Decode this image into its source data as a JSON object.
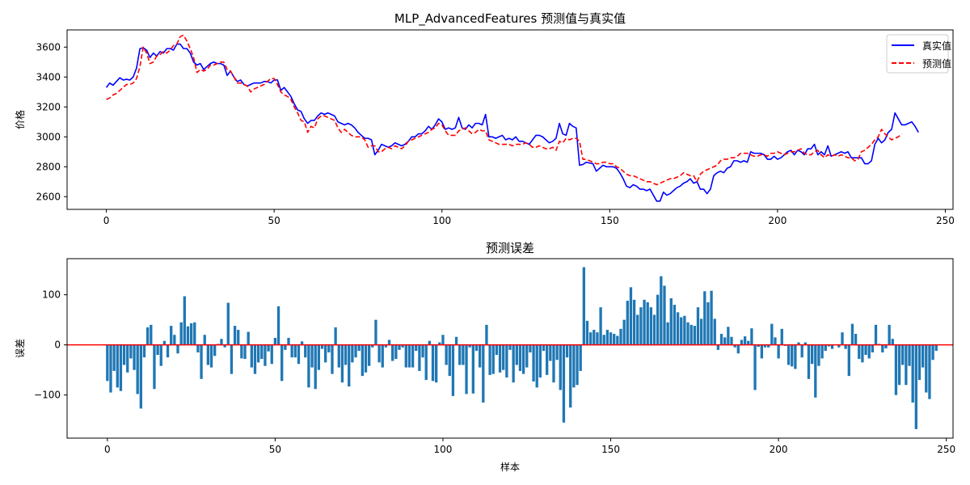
{
  "chart_data": [
    {
      "type": "line",
      "title": "MLP_AdvancedFeatures 预测值与真实值",
      "xlabel": "",
      "ylabel": "价格",
      "xlim": [
        -11.7,
        252.3
      ],
      "ylim": [
        2515,
        3715
      ],
      "xticks": [
        0,
        50,
        100,
        150,
        200,
        250
      ],
      "yticks": [
        2600,
        2800,
        3000,
        3200,
        3400,
        3600
      ],
      "grid": false,
      "legend_position": "upper right",
      "series": [
        {
          "name": "真实值",
          "color": "#0000ff",
          "style": "solid",
          "values": [
            3330,
            3360,
            3345,
            3370,
            3395,
            3380,
            3385,
            3380,
            3400,
            3460,
            3590,
            3595,
            3580,
            3530,
            3560,
            3540,
            3570,
            3560,
            3590,
            3590,
            3580,
            3620,
            3620,
            3590,
            3590,
            3560,
            3500,
            3480,
            3490,
            3450,
            3470,
            3490,
            3500,
            3490,
            3490,
            3480,
            3410,
            3440,
            3400,
            3370,
            3380,
            3350,
            3340,
            3350,
            3360,
            3360,
            3360,
            3370,
            3370,
            3360,
            3380,
            3380,
            3310,
            3330,
            3300,
            3270,
            3220,
            3180,
            3170,
            3120,
            3090,
            3110,
            3110,
            3140,
            3160,
            3150,
            3160,
            3150,
            3140,
            3100,
            3090,
            3080,
            3090,
            3080,
            3060,
            3030,
            3010,
            2990,
            2990,
            2980,
            2880,
            2910,
            2950,
            2940,
            2930,
            2940,
            2960,
            2950,
            2940,
            2950,
            2970,
            3000,
            3000,
            3020,
            3020,
            3040,
            3070,
            3050,
            3080,
            3120,
            3100,
            3050,
            3060,
            3050,
            3060,
            3130,
            3060,
            3050,
            3080,
            3060,
            3090,
            3090,
            3080,
            3150,
            3000,
            3000,
            2990,
            3000,
            3010,
            2980,
            2990,
            2980,
            3000,
            2970,
            2970,
            2960,
            2950,
            2980,
            3010,
            3010,
            3000,
            2980,
            2960,
            2970,
            2990,
            3090,
            3020,
            3010,
            3090,
            3070,
            3060,
            2810,
            2815,
            2830,
            2825,
            2820,
            2770,
            2790,
            2810,
            2800,
            2800,
            2800,
            2790,
            2760,
            2720,
            2670,
            2660,
            2680,
            2670,
            2650,
            2650,
            2640,
            2650,
            2610,
            2570,
            2570,
            2630,
            2610,
            2620,
            2640,
            2660,
            2670,
            2690,
            2700,
            2720,
            2690,
            2700,
            2650,
            2650,
            2620,
            2650,
            2740,
            2760,
            2770,
            2760,
            2790,
            2800,
            2840,
            2840,
            2830,
            2840,
            2830,
            2900,
            2890,
            2890,
            2890,
            2880,
            2850,
            2850,
            2870,
            2850,
            2860,
            2880,
            2900,
            2910,
            2880,
            2910,
            2900,
            2880,
            2920,
            2920,
            2950,
            2880,
            2900,
            2880,
            2940,
            2870,
            2880,
            2890,
            2900,
            2890,
            2900,
            2860,
            2860,
            2860,
            2860,
            2820,
            2820,
            2840,
            2950,
            2990,
            2960,
            2980,
            3030,
            3050,
            3160,
            3120,
            3080,
            3080,
            3090,
            3100,
            3070,
            3030
          ]
        },
        {
          "name": "预测值",
          "color": "#ff0000",
          "style": "dashed",
          "values": [
            3250,
            3260,
            3280,
            3290,
            3310,
            3330,
            3350,
            3350,
            3360,
            3390,
            3470,
            3600,
            3560,
            3490,
            3500,
            3540,
            3550,
            3570,
            3560,
            3580,
            3610,
            3620,
            3670,
            3680,
            3640,
            3590,
            3530,
            3430,
            3450,
            3440,
            3450,
            3480,
            3480,
            3490,
            3500,
            3500,
            3450,
            3440,
            3400,
            3360,
            3360,
            3350,
            3340,
            3300,
            3320,
            3330,
            3340,
            3350,
            3370,
            3390,
            3390,
            3350,
            3300,
            3280,
            3270,
            3250,
            3200,
            3160,
            3110,
            3100,
            3030,
            3070,
            3060,
            3120,
            3140,
            3140,
            3130,
            3120,
            3110,
            3060,
            3030,
            3050,
            3030,
            3010,
            3000,
            3000,
            3000,
            2980,
            2930,
            2940,
            2940,
            2900,
            2900,
            2920,
            2930,
            2920,
            2940,
            2930,
            2920,
            2940,
            2970,
            2980,
            2990,
            3000,
            3010,
            3020,
            3030,
            3050,
            3060,
            3090,
            3080,
            3040,
            3010,
            3010,
            3010,
            3040,
            3050,
            3060,
            3040,
            3020,
            3030,
            3050,
            3040,
            3040,
            2980,
            2970,
            2960,
            2950,
            2950,
            2950,
            2950,
            2940,
            2950,
            2950,
            2950,
            2960,
            2950,
            2930,
            2930,
            2940,
            2930,
            2920,
            2920,
            2930,
            2910,
            2970,
            2960,
            2990,
            2980,
            2990,
            2990,
            2970,
            2850,
            2850,
            2840,
            2830,
            2820,
            2820,
            2830,
            2830,
            2820,
            2820,
            2800,
            2790,
            2770,
            2750,
            2740,
            2740,
            2730,
            2720,
            2710,
            2700,
            2700,
            2690,
            2680,
            2690,
            2700,
            2710,
            2720,
            2720,
            2730,
            2740,
            2760,
            2750,
            2740,
            2740,
            2700,
            2750,
            2770,
            2780,
            2790,
            2800,
            2810,
            2840,
            2850,
            2850,
            2860,
            2860,
            2870,
            2890,
            2890,
            2890,
            2880,
            2870,
            2870,
            2880,
            2880,
            2870,
            2890,
            2890,
            2900,
            2890,
            2880,
            2890,
            2900,
            2900,
            2910,
            2920,
            2890,
            2880,
            2880,
            2900,
            2910,
            2880,
            2860,
            2880,
            2870,
            2880,
            2870,
            2880,
            2870,
            2860,
            2860,
            2840,
            2850,
            2900,
            2910,
            2930,
            2950,
            2980,
            3000,
            3050,
            3020,
            3000,
            2980,
            2990,
            3000,
            3020
          ]
        }
      ]
    },
    {
      "type": "bar",
      "title": "预测误差",
      "xlabel": "样本",
      "ylabel": "误差",
      "xlim": [
        -12.0,
        252.0
      ],
      "ylim": [
        -186,
        172
      ],
      "xticks": [
        0,
        50,
        100,
        150,
        200,
        250
      ],
      "yticks": [
        -100,
        0,
        100
      ],
      "grid": false,
      "bar_color": "#1f77b4",
      "zero_line_color": "#ff0000",
      "values": [
        -72,
        -95,
        -52,
        -85,
        -92,
        -40,
        -55,
        -27,
        -50,
        -98,
        -127,
        -25,
        35,
        40,
        -88,
        -20,
        -42,
        8,
        -25,
        38,
        20,
        -17,
        45,
        97,
        37,
        43,
        45,
        -15,
        -68,
        20,
        -40,
        -45,
        -22,
        2,
        12,
        -5,
        84,
        -58,
        38,
        30,
        -27,
        -28,
        26,
        -45,
        -58,
        -35,
        -28,
        -42,
        -13,
        -38,
        14,
        77,
        -72,
        -10,
        14,
        -25,
        -25,
        -38,
        7,
        -25,
        -85,
        -45,
        -88,
        -50,
        -8,
        -35,
        -15,
        -58,
        35,
        -45,
        -75,
        -40,
        -83,
        -35,
        -25,
        -12,
        -62,
        -55,
        -42,
        -5,
        50,
        -35,
        -45,
        -5,
        10,
        -32,
        -28,
        -10,
        -5,
        -45,
        -45,
        -45,
        -12,
        -52,
        -25,
        -70,
        8,
        -72,
        -75,
        5,
        20,
        -40,
        -62,
        -102,
        16,
        -40,
        -40,
        -98,
        -5,
        -97,
        -12,
        -45,
        -115,
        40,
        -60,
        -58,
        -20,
        -55,
        -50,
        -65,
        -10,
        -75,
        -40,
        -52,
        -58,
        -45,
        -15,
        -73,
        -85,
        -65,
        -12,
        -60,
        -32,
        -75,
        -30,
        -90,
        -155,
        -25,
        -125,
        -85,
        -80,
        -52,
        155,
        48,
        25,
        30,
        25,
        75,
        20,
        30,
        25,
        22,
        18,
        32,
        50,
        88,
        115,
        90,
        60,
        75,
        90,
        85,
        75,
        60,
        100,
        137,
        118,
        45,
        93,
        80,
        65,
        55,
        58,
        45,
        40,
        38,
        75,
        52,
        107,
        85,
        108,
        52,
        -10,
        22,
        15,
        36,
        16,
        -5,
        -17,
        10,
        17,
        8,
        33,
        -90,
        -4,
        -27,
        -5,
        -5,
        42,
        15,
        -27,
        32,
        -2,
        -40,
        -43,
        -48,
        5,
        -25,
        5,
        -68,
        -38,
        -105,
        -42,
        -27,
        -12,
        -3,
        -8,
        0,
        -5,
        25,
        -8,
        -62,
        42,
        22,
        -28,
        -35,
        -20,
        -27,
        -15,
        40,
        2,
        -15,
        -7,
        40,
        12,
        -100,
        -80,
        -40,
        -80,
        -42,
        -115,
        -168,
        -70,
        -45,
        -95,
        -108,
        -30,
        -12
      ]
    }
  ]
}
